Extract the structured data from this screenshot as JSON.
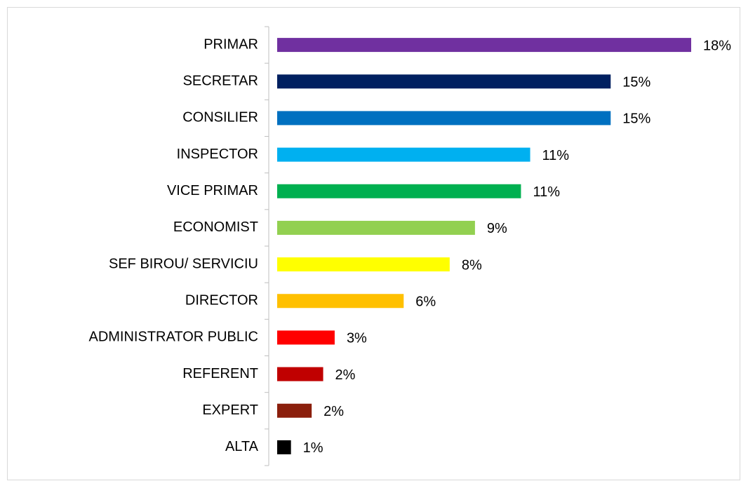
{
  "chart_data": {
    "type": "bar",
    "orientation": "horizontal",
    "categories": [
      "PRIMAR",
      "SECRETAR",
      "CONSILIER",
      "INSPECTOR",
      "VICE PRIMAR",
      "ECONOMIST",
      "SEF BIROU/ SERVICIU",
      "DIRECTOR",
      "ADMINISTRATOR PUBLIC",
      "REFERENT",
      "EXPERT",
      "ALTA"
    ],
    "values": [
      18,
      14.5,
      14.5,
      11,
      10.6,
      8.6,
      7.5,
      5.5,
      2.5,
      2,
      1.5,
      0.6
    ],
    "value_labels": [
      "18%",
      "15%",
      "15%",
      "11%",
      "11%",
      "9%",
      "8%",
      "6%",
      "3%",
      "2%",
      "2%",
      "1%"
    ],
    "colors": [
      "#7030a0",
      "#002060",
      "#0070c0",
      "#00b0f0",
      "#00b050",
      "#92d050",
      "#ffff00",
      "#ffc000",
      "#ff0000",
      "#c00000",
      "#8b1f0c",
      "#000000"
    ],
    "grid": false
  }
}
